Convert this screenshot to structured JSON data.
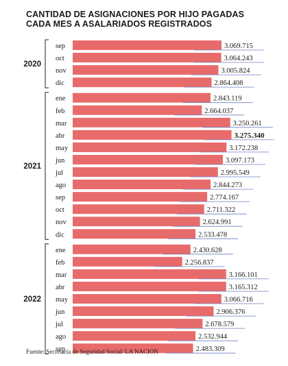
{
  "title_line1": "CANTIDAD DE ASIGNACIONES POR HIJO PAGADAS",
  "title_line2": "CADA MES A ASALARIADOS REGISTRADOS",
  "source": "Fuente: Secretaría de Seguridad Social/ LA NACION",
  "colors": {
    "bar": "#e86b6b",
    "line": "#6f7fc2",
    "text": "#1a1a1a",
    "bracket": "#222222"
  },
  "chart_data": {
    "type": "bar",
    "orientation": "horizontal",
    "title": "CANTIDAD DE ASIGNACIONES POR HIJO PAGADAS CADA MES A ASALARIADOS REGISTRADOS",
    "groups": [
      {
        "label": "2020",
        "months": [
          "sep",
          "oct",
          "nov",
          "dic"
        ],
        "values": [
          3069715,
          3064243,
          3005824,
          2864408
        ],
        "value_labels": [
          "3.069.715",
          "3.064.243",
          "3.005.824",
          "2.864.408"
        ]
      },
      {
        "label": "2021",
        "months": [
          "ene",
          "feb",
          "mar",
          "abr",
          "may",
          "jun",
          "jul",
          "ago",
          "sep",
          "oct",
          "nov",
          "dic"
        ],
        "values": [
          2843119,
          2664037,
          3250261,
          3275340,
          3172238,
          3097173,
          2995549,
          2844273,
          2774167,
          2711322,
          2624991,
          2533478
        ],
        "value_labels": [
          "2.843.119",
          "2.664.037",
          "3.250.261",
          "3.275.340",
          "3.172.238",
          "3.097.173",
          "2.995.549",
          "2.844.273",
          "2.774.167",
          "2.711.322",
          "2.624.991",
          "2.533.478"
        ]
      },
      {
        "label": "2022",
        "months": [
          "ene",
          "feb",
          "mar",
          "abr",
          "may",
          "jun",
          "jul",
          "ago",
          "sep"
        ],
        "values": [
          2430628,
          2256837,
          3166101,
          3165312,
          3066716,
          2906376,
          2678579,
          2532944,
          2483309
        ],
        "value_labels": [
          "2.430.628",
          "2.256.837",
          "3.166.101",
          "3.165.312",
          "3.066.716",
          "2.906.376",
          "2.678.579",
          "2.532.944",
          "2.483.309"
        ]
      }
    ],
    "highlight": "3.275.340"
  }
}
